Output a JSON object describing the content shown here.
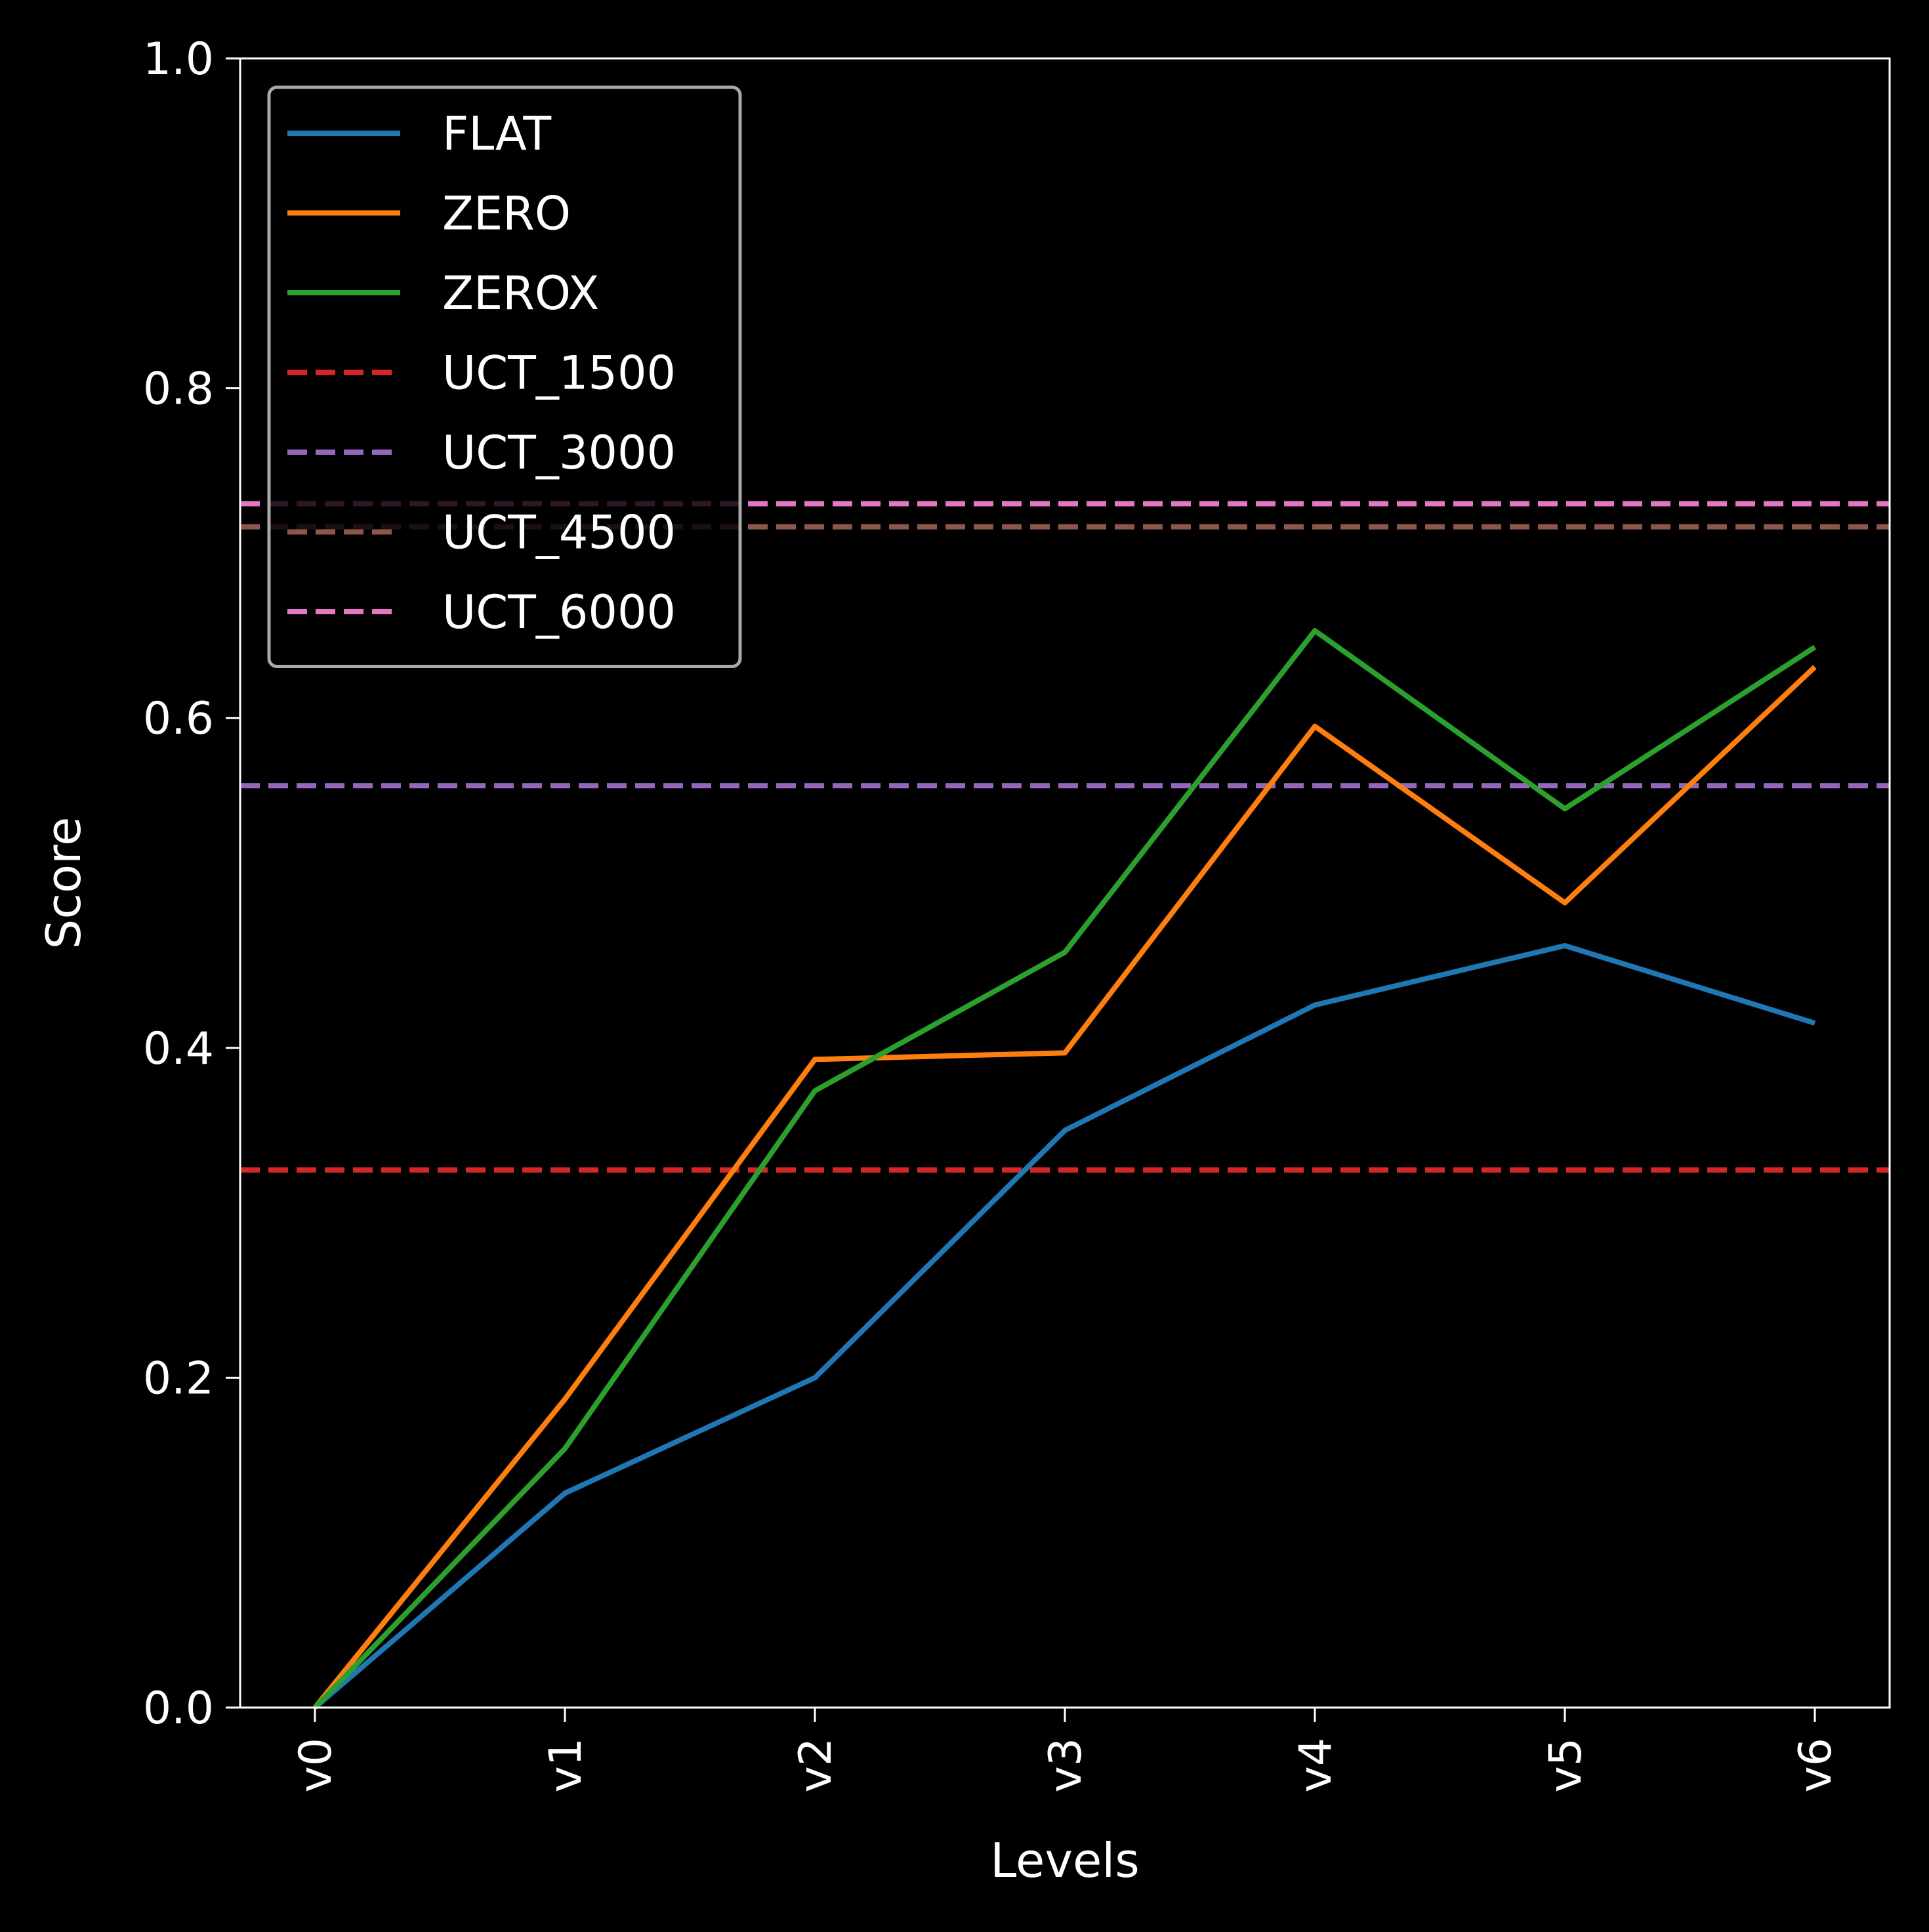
{
  "chart_data": {
    "type": "line",
    "title": "",
    "xlabel": "Levels",
    "ylabel": "Score",
    "categories": [
      "v0",
      "v1",
      "v2",
      "v3",
      "v4",
      "v5",
      "v6"
    ],
    "ylim": [
      0.0,
      1.0
    ],
    "yticks": [
      "0.0",
      "0.2",
      "0.4",
      "0.6",
      "0.8",
      "1.0"
    ],
    "grid": false,
    "legend_position": "top-left",
    "background": "#000000",
    "series": [
      {
        "name": "FLAT",
        "style": "solid",
        "color": "#1f77b4",
        "values": [
          0.0,
          0.13,
          0.2,
          0.35,
          0.426,
          0.462,
          0.415
        ]
      },
      {
        "name": "ZERO",
        "style": "solid",
        "color": "#ff7f0e",
        "values": [
          0.0,
          0.187,
          0.393,
          0.397,
          0.595,
          0.488,
          0.631
        ]
      },
      {
        "name": "ZEROX",
        "style": "solid",
        "color": "#2ca02c",
        "values": [
          0.0,
          0.157,
          0.374,
          0.458,
          0.653,
          0.545,
          0.643
        ]
      },
      {
        "name": "UCT_1500",
        "style": "dashed",
        "color": "#d62728",
        "constant": 0.326
      },
      {
        "name": "UCT_3000",
        "style": "dashed",
        "color": "#9467bd",
        "constant": 0.559
      },
      {
        "name": "UCT_4500",
        "style": "dashed",
        "color": "#8c564b",
        "constant": 0.716
      },
      {
        "name": "UCT_6000",
        "style": "dashed",
        "color": "#e377c2",
        "constant": 0.73
      }
    ]
  }
}
